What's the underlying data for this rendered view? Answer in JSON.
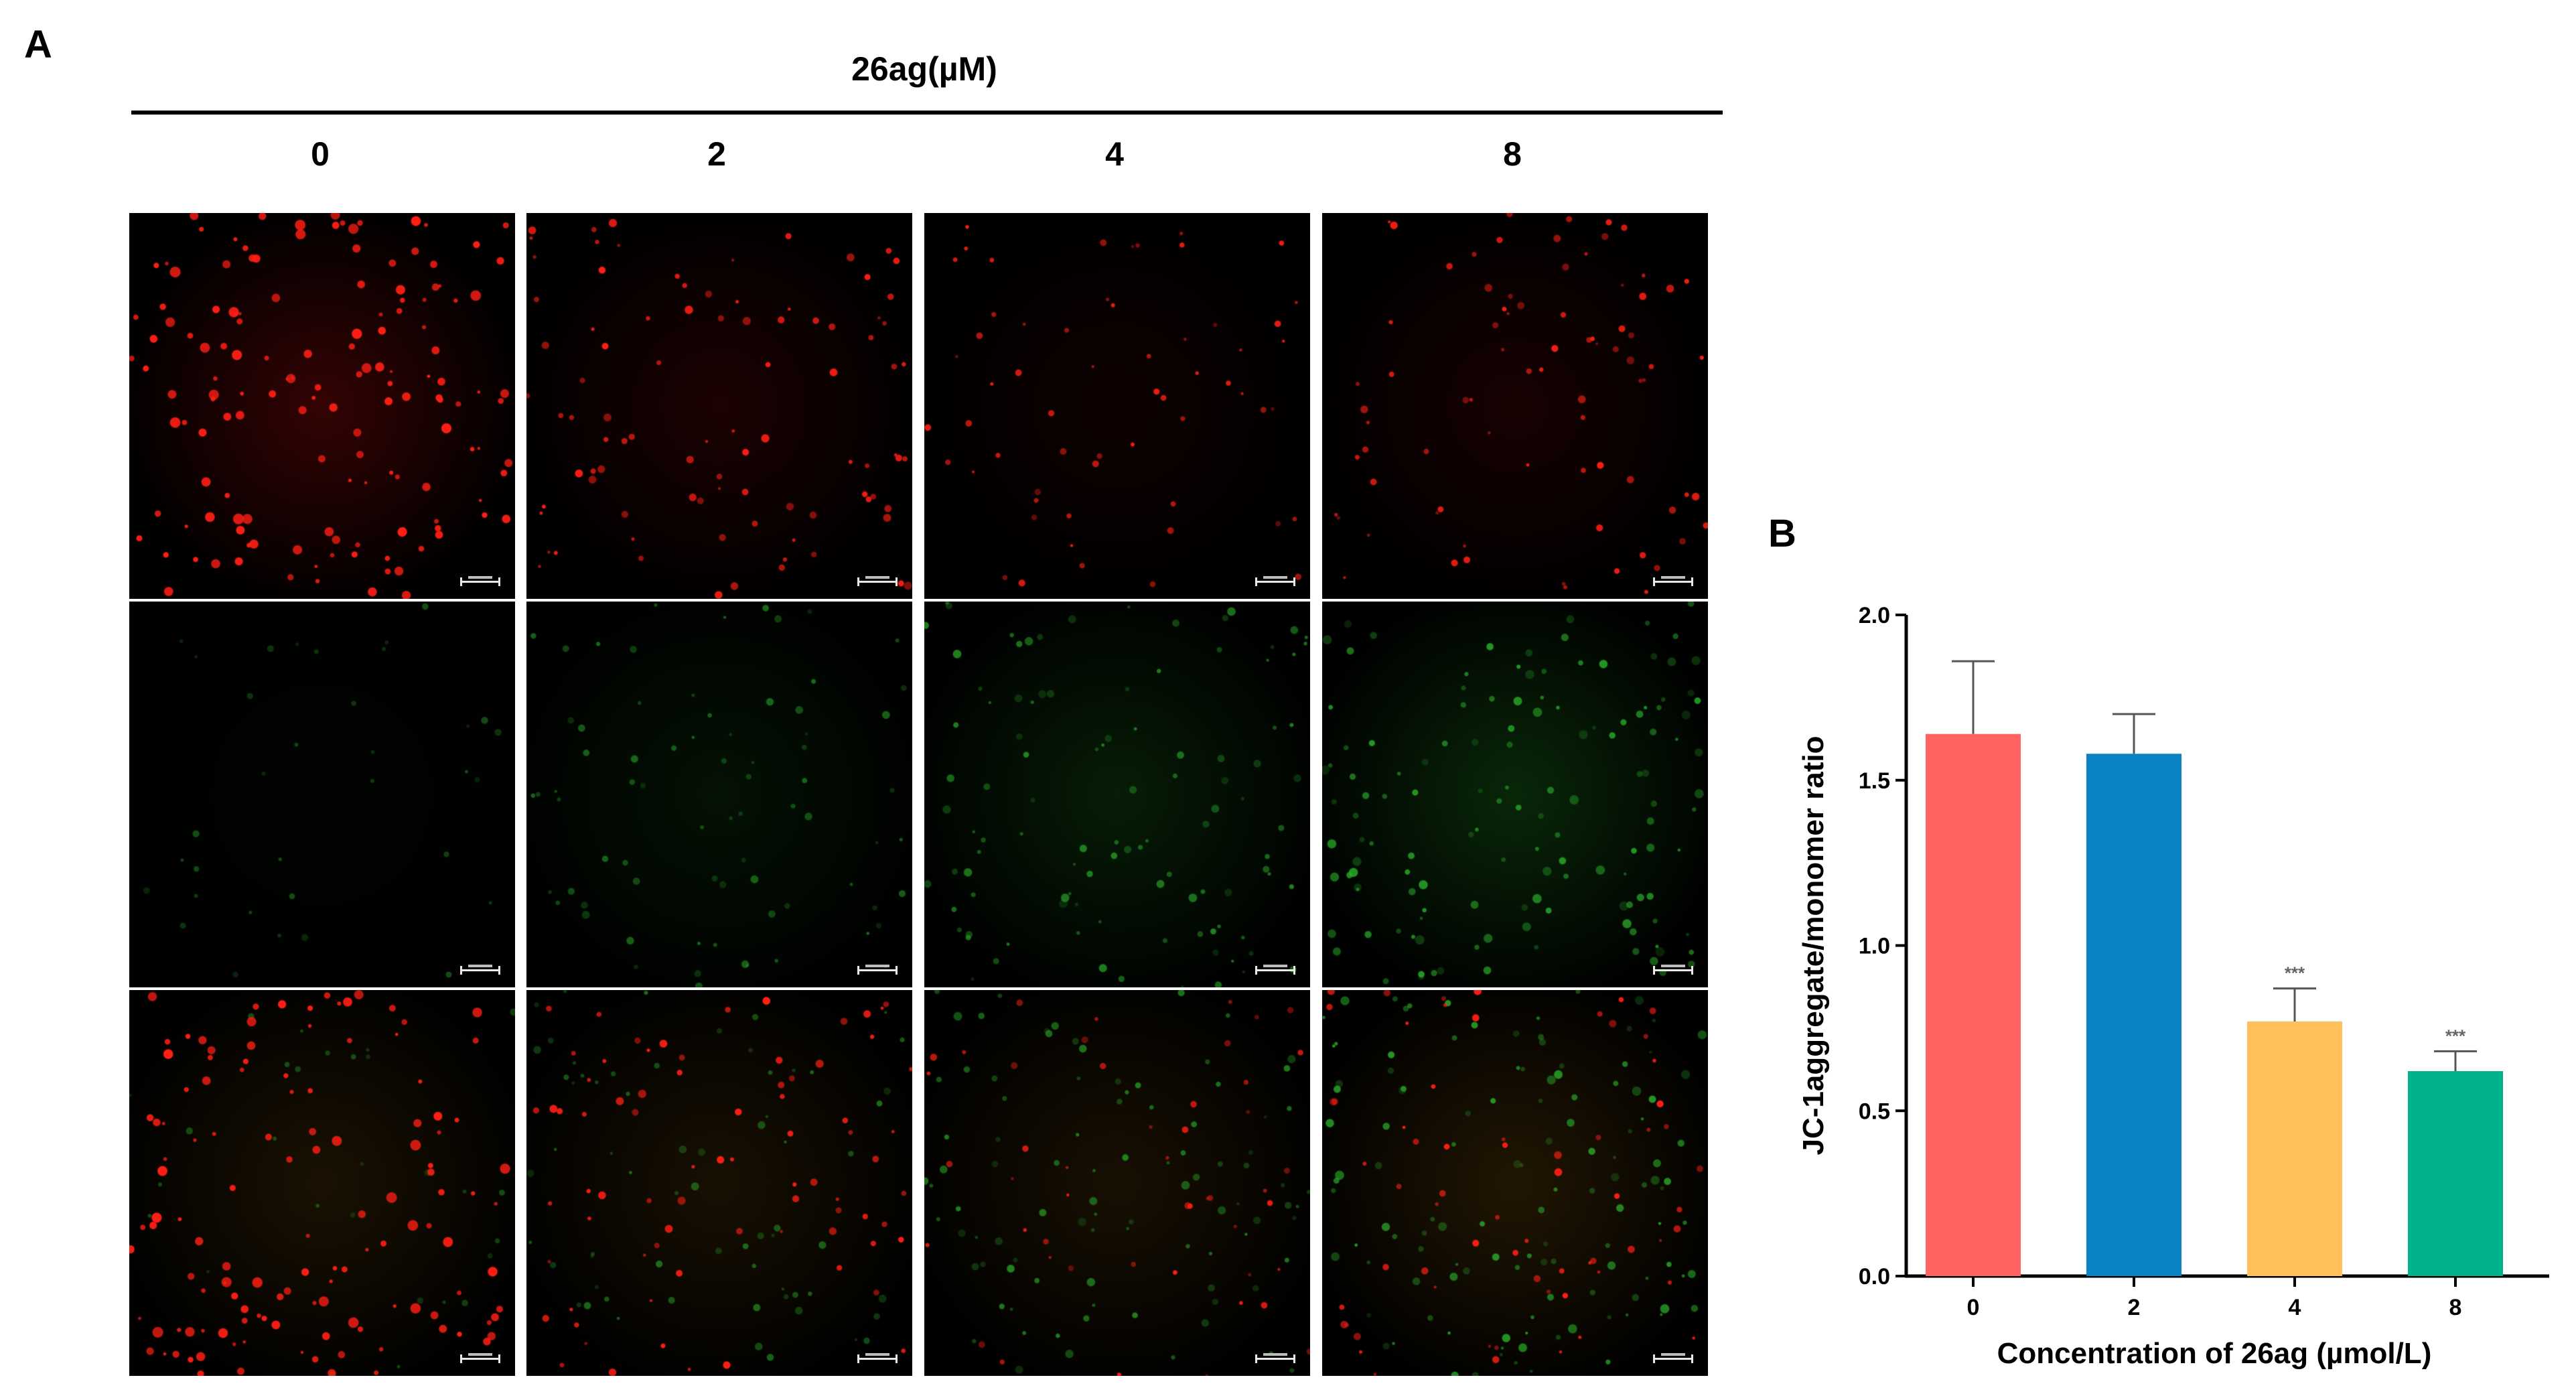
{
  "panel_a": {
    "letter": "A",
    "header_title": "26ag(µM)",
    "columns": [
      "0",
      "2",
      "4",
      "8"
    ],
    "rows": [
      {
        "channel": "red",
        "intensity": [
          1.0,
          0.55,
          0.28,
          0.45
        ]
      },
      {
        "channel": "green",
        "intensity": [
          0.12,
          0.45,
          0.7,
          0.95
        ]
      },
      {
        "channel": "merge",
        "red_intensity": [
          1.0,
          0.55,
          0.3,
          0.45
        ],
        "green_intensity": [
          0.12,
          0.45,
          0.7,
          0.95
        ]
      }
    ]
  },
  "panel_b": {
    "letter": "B"
  },
  "chart_data": {
    "type": "bar",
    "categories": [
      "0",
      "2",
      "4",
      "8"
    ],
    "values": [
      1.64,
      1.58,
      0.77,
      0.62
    ],
    "errors": [
      0.22,
      0.12,
      0.1,
      0.06
    ],
    "significance": [
      "",
      "",
      "***",
      "***"
    ],
    "colors": [
      "#ff6361",
      "#0a82c4",
      "#ffbf5a",
      "#00b38a"
    ],
    "xlabel": "Concentration of 26ag (µmol/L)",
    "ylabel": "JC-1aggregate/monomer ratio",
    "ylim": [
      0,
      2.0
    ],
    "yticks": [
      0.0,
      0.5,
      1.0,
      1.5,
      2.0
    ],
    "ytick_labels": [
      "0.0",
      "0.5",
      "1.0",
      "1.5",
      "2.0"
    ],
    "grid": false
  }
}
